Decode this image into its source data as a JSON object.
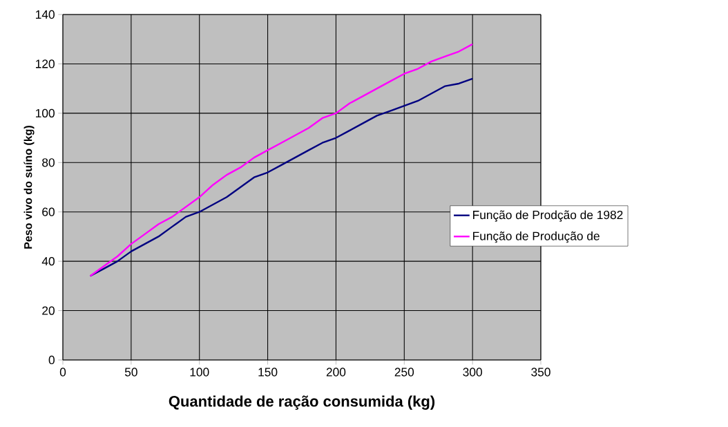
{
  "chart_data": {
    "type": "line",
    "xlabel": "Quantidade de ração consumida (kg)",
    "ylabel": "Peso vivo do suíno (kg)",
    "x": [
      20,
      30,
      40,
      50,
      60,
      70,
      80,
      90,
      100,
      110,
      120,
      130,
      140,
      150,
      160,
      170,
      180,
      190,
      200,
      210,
      220,
      230,
      240,
      250,
      260,
      270,
      280,
      290,
      300
    ],
    "series": [
      {
        "name": "Função de Prodção de 1982",
        "color": "#000080",
        "values": [
          34,
          37,
          40,
          44,
          47,
          50,
          54,
          58,
          60,
          63,
          66,
          70,
          74,
          76,
          79,
          82,
          85,
          88,
          90,
          93,
          96,
          99,
          101,
          103,
          105,
          108,
          111,
          112,
          114
        ]
      },
      {
        "name": "Função de Produção de",
        "color": "#ff00ff",
        "values": [
          34,
          38,
          42,
          47,
          51,
          55,
          58,
          62,
          66,
          71,
          75,
          78,
          82,
          85,
          88,
          91,
          94,
          98,
          100,
          104,
          107,
          110,
          113,
          116,
          118,
          121,
          123,
          125,
          128
        ]
      }
    ],
    "xlim": [
      0,
      350
    ],
    "ylim": [
      0,
      140
    ],
    "xticks": [
      0,
      50,
      100,
      150,
      200,
      250,
      300,
      350
    ],
    "yticks": [
      0,
      20,
      40,
      60,
      80,
      100,
      120,
      140
    ],
    "grid": true,
    "legend": "right",
    "marker": "none",
    "line_style": "solid"
  }
}
